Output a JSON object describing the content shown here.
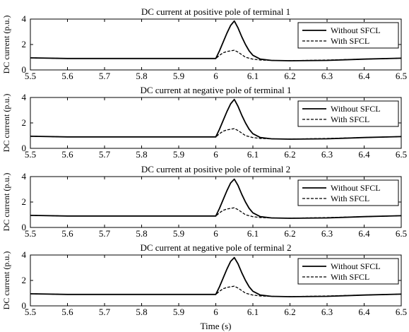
{
  "x_axis_label": "Time (s)",
  "chart_data": [
    {
      "type": "line",
      "title": "DC current at positive pole of terminal 1",
      "ylabel": "DC current (p.u.)",
      "xlabel": "",
      "xlim": [
        5.5,
        6.5
      ],
      "ylim": [
        0,
        4
      ],
      "x_ticks": [
        "5.5",
        "5.6",
        "5.7",
        "5.8",
        "5.9",
        "6",
        "6.1",
        "6.2",
        "6.3",
        "6.4",
        "6.5"
      ],
      "y_ticks": [
        "0",
        "2",
        "4"
      ],
      "grid": false,
      "legend_position": "top-right",
      "series": [
        {
          "name": "Without SFCL",
          "style": "solid",
          "x": [
            5.5,
            5.6,
            5.7,
            5.8,
            5.9,
            6.0,
            6.01,
            6.02,
            6.03,
            6.04,
            6.05,
            6.06,
            6.07,
            6.08,
            6.09,
            6.1,
            6.12,
            6.15,
            6.2,
            6.3,
            6.4,
            6.5
          ],
          "values": [
            0.95,
            0.9,
            0.9,
            0.9,
            0.9,
            0.9,
            1.5,
            2.2,
            2.9,
            3.5,
            3.85,
            3.3,
            2.6,
            2.0,
            1.5,
            1.15,
            0.85,
            0.75,
            0.72,
            0.75,
            0.85,
            0.92
          ]
        },
        {
          "name": "With SFCL",
          "style": "dashed",
          "x": [
            5.5,
            5.6,
            5.7,
            5.8,
            5.9,
            6.0,
            6.01,
            6.02,
            6.03,
            6.04,
            6.05,
            6.06,
            6.07,
            6.08,
            6.1,
            6.12,
            6.15,
            6.2,
            6.3,
            6.4,
            6.5
          ],
          "values": [
            0.95,
            0.9,
            0.9,
            0.9,
            0.9,
            0.9,
            1.15,
            1.35,
            1.45,
            1.5,
            1.55,
            1.4,
            1.2,
            1.0,
            0.85,
            0.78,
            0.75,
            0.73,
            0.78,
            0.85,
            0.92
          ]
        }
      ]
    },
    {
      "type": "line",
      "title": "DC current at negative pole of terminal 1",
      "ylabel": "DC current (p.u.)",
      "xlabel": "",
      "xlim": [
        5.5,
        6.5
      ],
      "ylim": [
        0,
        4
      ],
      "x_ticks": [
        "5.5",
        "5.6",
        "5.7",
        "5.8",
        "5.9",
        "6",
        "6.1",
        "6.2",
        "6.3",
        "6.4",
        "6.5"
      ],
      "y_ticks": [
        "0",
        "2",
        "4"
      ],
      "grid": false,
      "legend_position": "top-right",
      "series": [
        {
          "name": "Without SFCL",
          "style": "solid",
          "x": [
            5.5,
            5.6,
            5.7,
            5.8,
            5.9,
            6.0,
            6.01,
            6.02,
            6.03,
            6.04,
            6.05,
            6.06,
            6.07,
            6.08,
            6.09,
            6.1,
            6.12,
            6.15,
            6.2,
            6.3,
            6.4,
            6.5
          ],
          "values": [
            0.95,
            0.9,
            0.9,
            0.9,
            0.9,
            0.9,
            1.5,
            2.2,
            2.9,
            3.5,
            3.85,
            3.3,
            2.6,
            2.0,
            1.5,
            1.15,
            0.85,
            0.75,
            0.72,
            0.75,
            0.85,
            0.92
          ]
        },
        {
          "name": "With SFCL",
          "style": "dashed",
          "x": [
            5.5,
            5.6,
            5.7,
            5.8,
            5.9,
            6.0,
            6.01,
            6.02,
            6.03,
            6.04,
            6.05,
            6.06,
            6.07,
            6.08,
            6.1,
            6.12,
            6.15,
            6.2,
            6.3,
            6.4,
            6.5
          ],
          "values": [
            0.95,
            0.9,
            0.9,
            0.9,
            0.9,
            0.9,
            1.15,
            1.35,
            1.45,
            1.5,
            1.55,
            1.4,
            1.2,
            1.0,
            0.85,
            0.78,
            0.75,
            0.73,
            0.78,
            0.85,
            0.92
          ]
        }
      ]
    },
    {
      "type": "line",
      "title": "DC current at positive pole of terminal 2",
      "ylabel": "DC current (p.u.)",
      "xlabel": "",
      "xlim": [
        5.5,
        6.5
      ],
      "ylim": [
        0,
        4
      ],
      "x_ticks": [
        "5.5",
        "5.6",
        "5.7",
        "5.8",
        "5.9",
        "6",
        "6.1",
        "6.2",
        "6.3",
        "6.4",
        "6.5"
      ],
      "y_ticks": [
        "0",
        "2",
        "4"
      ],
      "grid": false,
      "legend_position": "top-right",
      "series": [
        {
          "name": "Without SFCL",
          "style": "solid",
          "x": [
            5.5,
            5.6,
            5.7,
            5.8,
            5.9,
            6.0,
            6.01,
            6.02,
            6.03,
            6.04,
            6.05,
            6.06,
            6.07,
            6.08,
            6.09,
            6.1,
            6.12,
            6.15,
            6.2,
            6.3,
            6.4,
            6.5
          ],
          "values": [
            0.95,
            0.9,
            0.9,
            0.9,
            0.9,
            0.9,
            1.5,
            2.2,
            2.9,
            3.5,
            3.8,
            3.3,
            2.6,
            2.0,
            1.5,
            1.15,
            0.85,
            0.75,
            0.72,
            0.75,
            0.85,
            0.92
          ]
        },
        {
          "name": "With SFCL",
          "style": "dashed",
          "x": [
            5.5,
            5.6,
            5.7,
            5.8,
            5.9,
            6.0,
            6.01,
            6.02,
            6.03,
            6.04,
            6.05,
            6.06,
            6.07,
            6.08,
            6.1,
            6.12,
            6.15,
            6.2,
            6.3,
            6.4,
            6.5
          ],
          "values": [
            0.95,
            0.9,
            0.9,
            0.9,
            0.9,
            0.9,
            1.15,
            1.35,
            1.45,
            1.5,
            1.55,
            1.4,
            1.2,
            1.0,
            0.85,
            0.78,
            0.75,
            0.73,
            0.78,
            0.85,
            0.92
          ]
        }
      ]
    },
    {
      "type": "line",
      "title": "DC current at negative pole of terminal 2",
      "ylabel": "DC current (p.u.)",
      "xlabel": "Time (s)",
      "xlim": [
        5.5,
        6.5
      ],
      "ylim": [
        0,
        4
      ],
      "x_ticks": [
        "5.5",
        "5.6",
        "5.7",
        "5.8",
        "5.9",
        "6",
        "6.1",
        "6.2",
        "6.3",
        "6.4",
        "6.5"
      ],
      "y_ticks": [
        "0",
        "2",
        "4"
      ],
      "grid": false,
      "legend_position": "top-right",
      "series": [
        {
          "name": "Without SFCL",
          "style": "solid",
          "x": [
            5.5,
            5.6,
            5.7,
            5.8,
            5.9,
            6.0,
            6.01,
            6.02,
            6.03,
            6.04,
            6.05,
            6.06,
            6.07,
            6.08,
            6.09,
            6.1,
            6.12,
            6.15,
            6.2,
            6.3,
            6.4,
            6.5
          ],
          "values": [
            0.95,
            0.9,
            0.9,
            0.9,
            0.9,
            0.9,
            1.5,
            2.2,
            2.9,
            3.5,
            3.8,
            3.3,
            2.6,
            2.0,
            1.5,
            1.15,
            0.85,
            0.75,
            0.72,
            0.75,
            0.85,
            0.92
          ]
        },
        {
          "name": "With SFCL",
          "style": "dashed",
          "x": [
            5.5,
            5.6,
            5.7,
            5.8,
            5.9,
            6.0,
            6.01,
            6.02,
            6.03,
            6.04,
            6.05,
            6.06,
            6.07,
            6.08,
            6.1,
            6.12,
            6.15,
            6.2,
            6.3,
            6.4,
            6.5
          ],
          "values": [
            0.95,
            0.9,
            0.9,
            0.9,
            0.9,
            0.9,
            1.15,
            1.35,
            1.45,
            1.5,
            1.55,
            1.4,
            1.2,
            1.0,
            0.85,
            0.78,
            0.75,
            0.73,
            0.78,
            0.85,
            0.92
          ]
        }
      ]
    }
  ]
}
